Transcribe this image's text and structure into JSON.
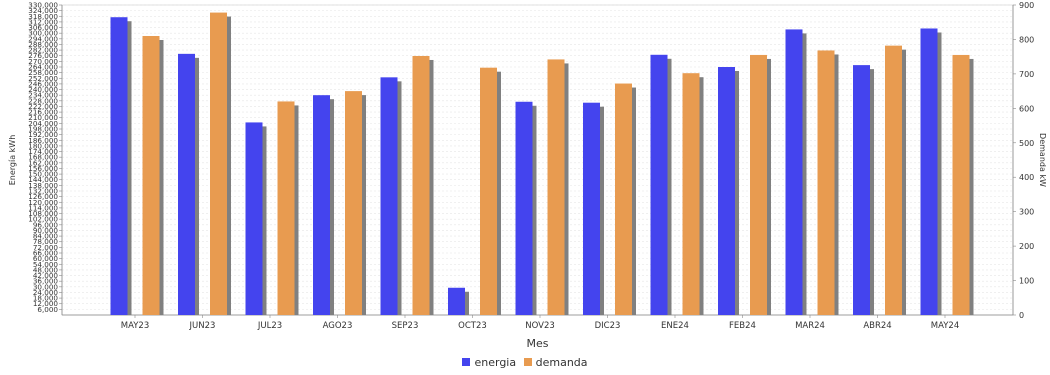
{
  "chart_data": {
    "type": "bar",
    "xlabel": "Mes",
    "ylabel_left": "Energía kWh",
    "ylabel_right": "Demanda kW",
    "categories": [
      "MAY23",
      "JUN23",
      "JUL23",
      "AGO23",
      "SEP23",
      "OCT23",
      "NOV23",
      "DIC23",
      "ENE24",
      "FEB24",
      "MAR24",
      "ABR24",
      "MAY24"
    ],
    "ylim_left": [
      0,
      330000
    ],
    "ylim_right": [
      0,
      900
    ],
    "left_ticks": [
      "6,000",
      "12,000",
      "18,000",
      "24,000",
      "30,000",
      "36,000",
      "42,000",
      "48,000",
      "54,000",
      "60,000",
      "66,000",
      "72,000",
      "78,000",
      "84,000",
      "90,000",
      "96,000",
      "102,000",
      "108,000",
      "114,000",
      "120,000",
      "126,000",
      "132,000",
      "138,000",
      "144,000",
      "150,000",
      "156,000",
      "162,000",
      "168,000",
      "174,000",
      "180,000",
      "186,000",
      "192,000",
      "198,000",
      "204,000",
      "210,000",
      "216,000",
      "222,000",
      "228,000",
      "234,000",
      "240,000",
      "246,000",
      "252,000",
      "258,000",
      "264,000",
      "270,000",
      "276,000",
      "282,000",
      "288,000",
      "294,000",
      "300,000",
      "306,000",
      "312,000",
      "318,000",
      "324,000",
      "330,000"
    ],
    "right_ticks": [
      "0",
      "100",
      "200",
      "300",
      "400",
      "500",
      "600",
      "700",
      "800",
      "900"
    ],
    "series": [
      {
        "name": "energia",
        "axis": "left",
        "color": "#4444ee",
        "values": [
          317000,
          278000,
          205000,
          234000,
          253000,
          29000,
          227000,
          226000,
          277000,
          264000,
          304000,
          266000,
          305000
        ]
      },
      {
        "name": "demanda",
        "axis": "right",
        "color": "#e89b50",
        "values": [
          810,
          878,
          620,
          650,
          752,
          718,
          742,
          672,
          702,
          755,
          768,
          782,
          755
        ]
      }
    ],
    "grid": true,
    "legend_position": "bottom-center"
  },
  "legend": {
    "items": [
      {
        "label": "energia",
        "color": "#4444ee"
      },
      {
        "label": "demanda",
        "color": "#e89b50"
      }
    ]
  }
}
